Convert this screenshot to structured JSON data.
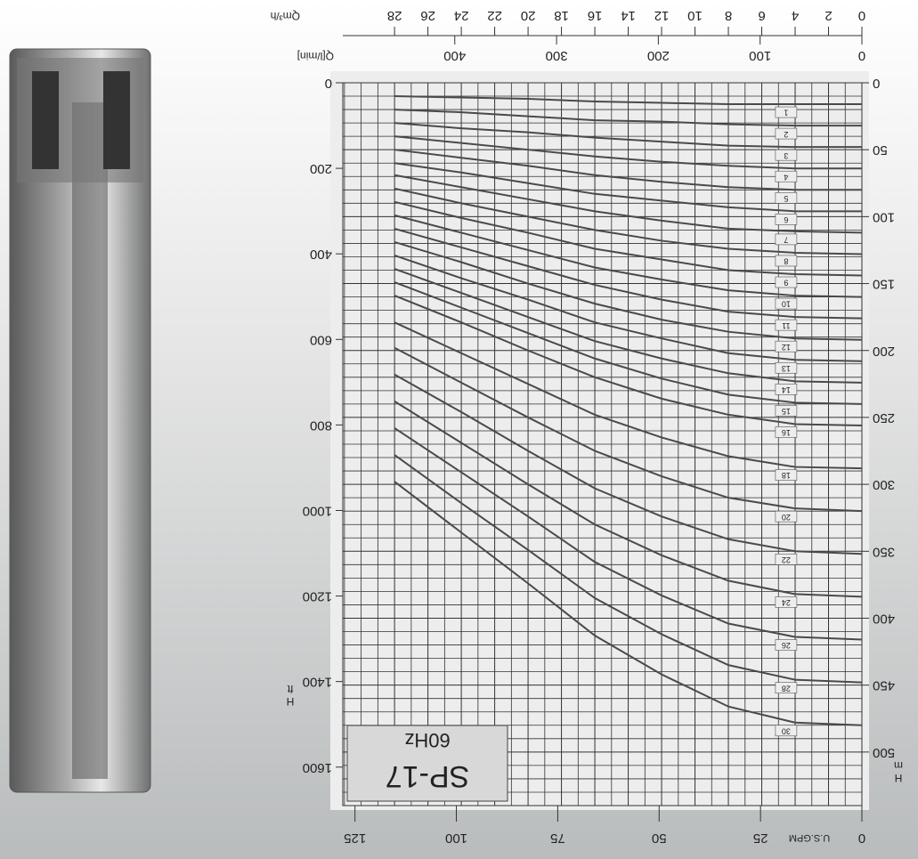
{
  "chart_data": {
    "type": "line",
    "title": "SP-17",
    "subtitle": "60Hz",
    "x": [
      0,
      4,
      8,
      12,
      16,
      20,
      24,
      28
    ],
    "xlabel": "Qm³/h",
    "xlim": [
      0,
      31.1
    ],
    "xticks": [
      0,
      2,
      4,
      6,
      8,
      10,
      12,
      14,
      16,
      18,
      20,
      22,
      24,
      26,
      28
    ],
    "x2label": "Q[l/min]",
    "x2lim": [
      0,
      510
    ],
    "x2ticks": [
      0,
      100,
      200,
      300,
      400
    ],
    "x3label": "U.S.GPM",
    "x3lim": [
      0,
      128
    ],
    "x3ticks": [
      0,
      25,
      50,
      75,
      100,
      125
    ],
    "ylabel": [
      "H",
      "m"
    ],
    "ylim": [
      0,
      540
    ],
    "yticks": [
      0,
      50,
      100,
      150,
      200,
      250,
      300,
      350,
      400,
      450,
      500
    ],
    "y2label": [
      "H",
      "ft"
    ],
    "y2lim": [
      0,
      1690
    ],
    "y2ticks": [
      0,
      200,
      400,
      600,
      800,
      1000,
      1200,
      1400,
      1600
    ],
    "grid": true,
    "color": "#4a4a4a",
    "series": [
      {
        "name": "1",
        "values": [
          16,
          16,
          16,
          15,
          14,
          12,
          11,
          10
        ]
      },
      {
        "name": "2",
        "values": [
          32,
          32,
          31,
          29,
          28,
          25,
          22,
          20
        ]
      },
      {
        "name": "3",
        "values": [
          48,
          48,
          47,
          44,
          41,
          37,
          34,
          30
        ]
      },
      {
        "name": "4",
        "values": [
          64,
          64,
          62,
          59,
          55,
          50,
          45,
          40
        ]
      },
      {
        "name": "5",
        "values": [
          80,
          80,
          78,
          74,
          69,
          62,
          56,
          50
        ]
      },
      {
        "name": "6",
        "values": [
          96,
          96,
          93,
          88,
          83,
          75,
          67,
          60
        ]
      },
      {
        "name": "7",
        "values": [
          112,
          111,
          109,
          103,
          96,
          87,
          78,
          69
        ]
      },
      {
        "name": "8",
        "values": [
          128,
          127,
          124,
          118,
          110,
          100,
          90,
          79
        ]
      },
      {
        "name": "9",
        "values": [
          144,
          143,
          140,
          132,
          124,
          112,
          101,
          89
        ]
      },
      {
        "name": "10",
        "values": [
          160,
          159,
          155,
          147,
          138,
          125,
          112,
          99
        ]
      },
      {
        "name": "11",
        "values": [
          176,
          175,
          171,
          162,
          151,
          137,
          123,
          109
        ]
      },
      {
        "name": "12",
        "values": [
          192,
          191,
          186,
          177,
          165,
          150,
          134,
          119
        ]
      },
      {
        "name": "13",
        "values": [
          208,
          207,
          202,
          191,
          179,
          162,
          146,
          129
        ]
      },
      {
        "name": "14",
        "values": [
          224,
          223,
          217,
          206,
          193,
          175,
          157,
          139
        ]
      },
      {
        "name": "15",
        "values": [
          240,
          239,
          233,
          221,
          206,
          187,
          168,
          149
        ]
      },
      {
        "name": "16",
        "values": [
          256,
          255,
          248,
          236,
          220,
          200,
          179,
          159
        ]
      },
      {
        "name": "18",
        "values": [
          288,
          287,
          279,
          265,
          248,
          225,
          202,
          179
        ]
      },
      {
        "name": "20",
        "values": [
          320,
          318,
          310,
          294,
          275,
          250,
          224,
          198
        ]
      },
      {
        "name": "22",
        "values": [
          352,
          350,
          341,
          324,
          303,
          275,
          246,
          218
        ]
      },
      {
        "name": "24",
        "values": [
          384,
          382,
          372,
          353,
          330,
          300,
          269,
          238
        ]
      },
      {
        "name": "26",
        "values": [
          416,
          414,
          404,
          383,
          358,
          324,
          291,
          258
        ]
      },
      {
        "name": "28",
        "values": [
          448,
          446,
          435,
          412,
          385,
          349,
          314,
          278
        ]
      },
      {
        "name": "30",
        "values": [
          480,
          478,
          466,
          442,
          413,
          374,
          336,
          298
        ]
      }
    ]
  }
}
